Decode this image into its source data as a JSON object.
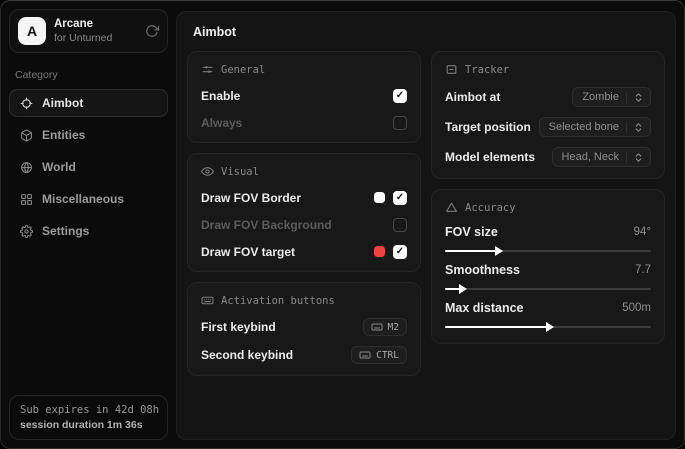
{
  "app": {
    "name": "Arcane",
    "subtitle": "for Unturned",
    "logo_letter": "A"
  },
  "sidebar": {
    "category_label": "Category",
    "items": [
      {
        "label": "Aimbot",
        "icon": "crosshair-icon",
        "selected": true
      },
      {
        "label": "Entities",
        "icon": "entities-icon",
        "selected": false
      },
      {
        "label": "World",
        "icon": "globe-icon",
        "selected": false
      },
      {
        "label": "Miscellaneous",
        "icon": "grid-icon",
        "selected": false
      },
      {
        "label": "Settings",
        "icon": "gear-icon",
        "selected": false
      }
    ],
    "footer": {
      "line1": "Sub expires in 42d 08h",
      "line2": "session duration 1m 36s"
    }
  },
  "page": {
    "title": "Aimbot"
  },
  "cards": {
    "general": {
      "title": "General",
      "icon": "sliders-icon",
      "rows": [
        {
          "label": "Enable",
          "checked": true,
          "dimmed": false
        },
        {
          "label": "Always",
          "checked": false,
          "dimmed": true
        }
      ]
    },
    "visual": {
      "title": "Visual",
      "icon": "eye-icon",
      "rows": [
        {
          "label": "Draw FOV Border",
          "swatch": "#ffffff",
          "checked": true,
          "dimmed": false
        },
        {
          "label": "Draw FOV Background",
          "checked": false,
          "dimmed": true
        },
        {
          "label": "Draw FOV target",
          "swatch": "#ef4444",
          "checked": true,
          "dimmed": false
        }
      ]
    },
    "activation": {
      "title": "Activation buttons",
      "icon": "keyboard-icon",
      "rows": [
        {
          "label": "First keybind",
          "key": "M2"
        },
        {
          "label": "Second keybind",
          "key": "CTRL"
        }
      ]
    },
    "tracker": {
      "title": "Tracker",
      "icon": "scan-icon",
      "rows": [
        {
          "label": "Aimbot at",
          "value": "Zombie"
        },
        {
          "label": "Target position",
          "value": "Selected bone"
        },
        {
          "label": "Model elements",
          "value": "Head, Neck"
        }
      ]
    },
    "accuracy": {
      "title": "Accuracy",
      "icon": "triangle-icon",
      "sliders": [
        {
          "label": "FOV size",
          "value": "94°",
          "percent": 25
        },
        {
          "label": "Smoothness",
          "value": "7.7",
          "percent": 8
        },
        {
          "label": "Max distance",
          "value": "500m",
          "percent": 50
        }
      ]
    }
  },
  "colors": {
    "accent_red": "#ef4444",
    "swatch_white": "#ffffff",
    "card_bg": "#181818",
    "window_bg": "#0b0b0b"
  }
}
